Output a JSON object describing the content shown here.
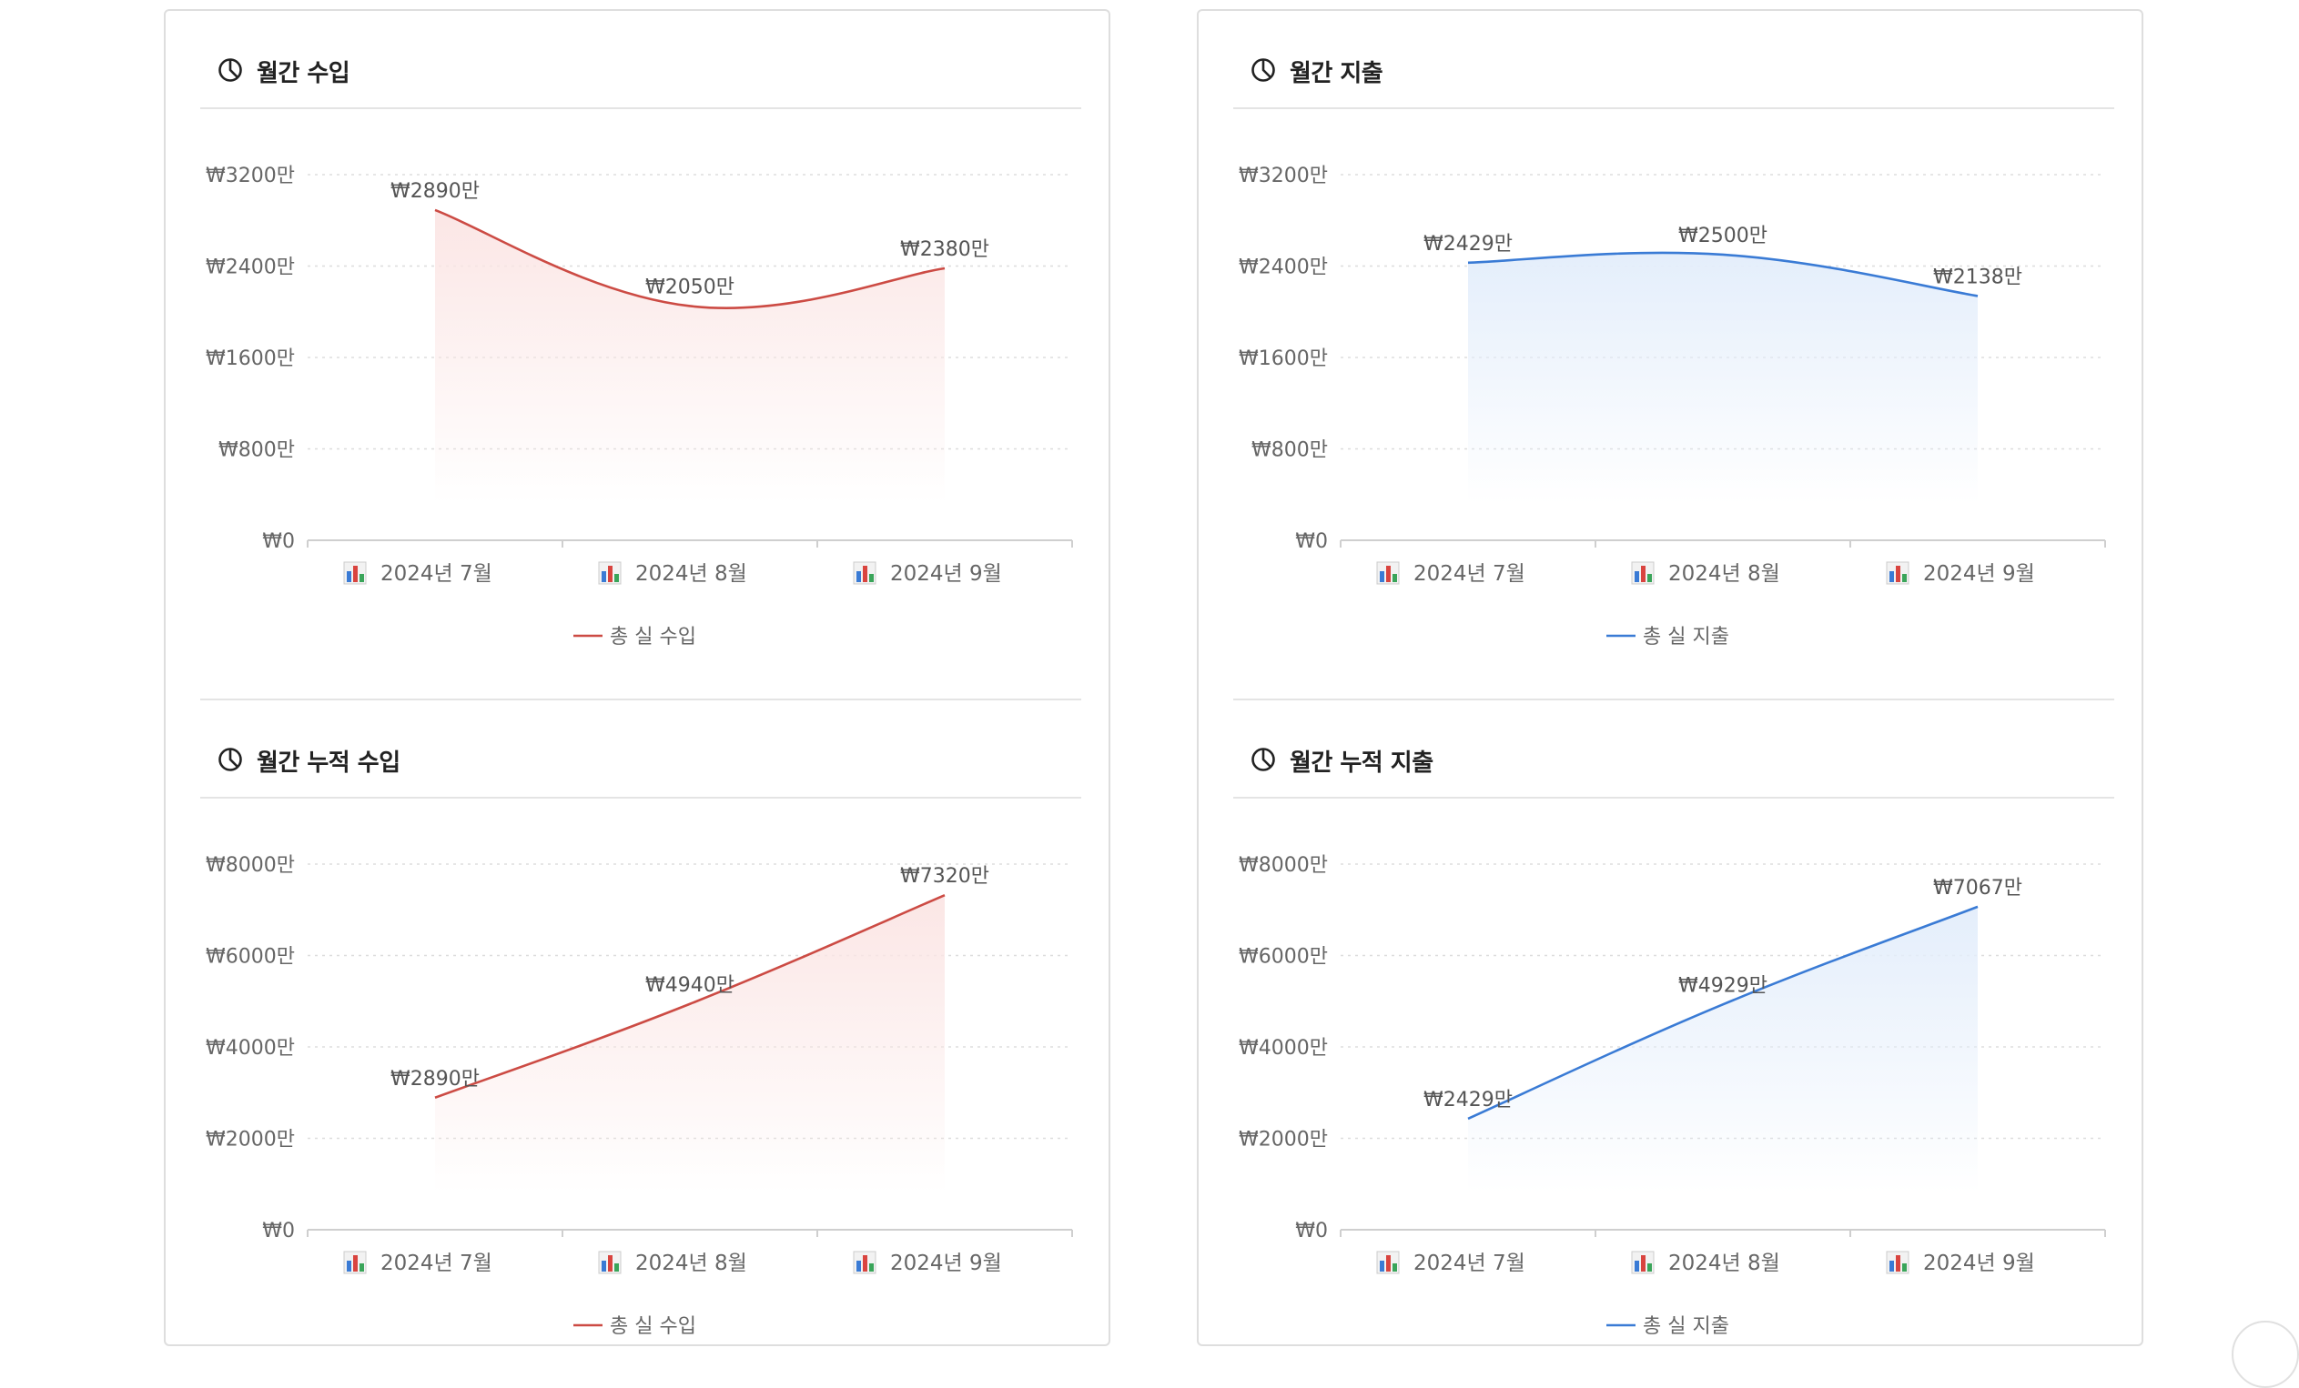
{
  "colors": {
    "income": "#cc4b44",
    "income_fill": "#fbe6e5",
    "expense": "#3a7bd5",
    "expense_fill": "#e4eefb",
    "axis_text": "#666666",
    "grid": "#dddddd"
  },
  "header_icon": "pie-chart-icon",
  "category_icon": "bar-chart-icon",
  "chart_data": [
    {
      "id": "monthly-income",
      "type": "area",
      "title": "월간 수입",
      "categories": [
        "2024년 7월",
        "2024년 8월",
        "2024년 9월"
      ],
      "y_ticks": [
        "₩0",
        "₩800만",
        "₩1600만",
        "₩2400만",
        "₩3200만"
      ],
      "ylim": [
        0,
        3200
      ],
      "series": [
        {
          "name": "총 실 수입",
          "color": "income",
          "values": [
            2890,
            2050,
            2380
          ],
          "labels": [
            "₩2890만",
            "₩2050만",
            "₩2380만"
          ]
        }
      ],
      "legend": "bottom-center"
    },
    {
      "id": "monthly-cumulative-income",
      "type": "area",
      "title": "월간 누적 수입",
      "categories": [
        "2024년 7월",
        "2024년 8월",
        "2024년 9월"
      ],
      "y_ticks": [
        "₩0",
        "₩2000만",
        "₩4000만",
        "₩6000만",
        "₩8000만"
      ],
      "ylim": [
        0,
        8000
      ],
      "series": [
        {
          "name": "총 실 수입",
          "color": "income",
          "values": [
            2890,
            4940,
            7320
          ],
          "labels": [
            "₩2890만",
            "₩4940만",
            "₩7320만"
          ]
        }
      ],
      "legend": "bottom-center"
    },
    {
      "id": "monthly-expense",
      "type": "area",
      "title": "월간 지출",
      "categories": [
        "2024년 7월",
        "2024년 8월",
        "2024년 9월"
      ],
      "y_ticks": [
        "₩0",
        "₩800만",
        "₩1600만",
        "₩2400만",
        "₩3200만"
      ],
      "ylim": [
        0,
        3200
      ],
      "series": [
        {
          "name": "총 실 지출",
          "color": "expense",
          "values": [
            2429,
            2500,
            2138
          ],
          "labels": [
            "₩2429만",
            "₩2500만",
            "₩2138만"
          ]
        }
      ],
      "legend": "bottom-center"
    },
    {
      "id": "monthly-cumulative-expense",
      "type": "area",
      "title": "월간 누적 지출",
      "categories": [
        "2024년 7월",
        "2024년 8월",
        "2024년 9월"
      ],
      "y_ticks": [
        "₩0",
        "₩2000만",
        "₩4000만",
        "₩6000만",
        "₩8000만"
      ],
      "ylim": [
        0,
        8000
      ],
      "series": [
        {
          "name": "총 실 지출",
          "color": "expense",
          "values": [
            2429,
            4929,
            7067
          ],
          "labels": [
            "₩2429만",
            "₩4929만",
            "₩7067만"
          ]
        }
      ],
      "legend": "bottom-center"
    }
  ]
}
